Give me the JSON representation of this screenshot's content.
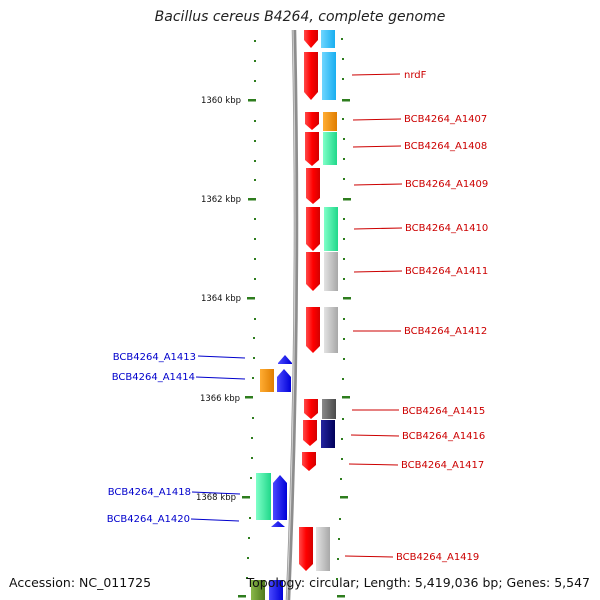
{
  "title": "Bacillus cereus B4264, complete genome",
  "footer": {
    "accession": "Accession: NC_011725",
    "summary": "Topology: circular; Length: 5,419,036 bp; Genes: 5,547"
  },
  "colors": {
    "forward_label": "#cc0000",
    "reverse_label": "#0000cc",
    "tick": "#2e7d1e",
    "backbone": "#888888"
  },
  "scale_labels": [
    "1360 kbp",
    "1362 kbp",
    "1364 kbp",
    "1366 kbp",
    "1368 kbp"
  ],
  "genes": [
    {
      "label": "nrdF",
      "strand": "forward"
    },
    {
      "label": "BCB4264_A1407",
      "strand": "forward"
    },
    {
      "label": "BCB4264_A1408",
      "strand": "forward"
    },
    {
      "label": "BCB4264_A1409",
      "strand": "forward"
    },
    {
      "label": "BCB4264_A1410",
      "strand": "forward"
    },
    {
      "label": "BCB4264_A1411",
      "strand": "forward"
    },
    {
      "label": "BCB4264_A1412",
      "strand": "forward"
    },
    {
      "label": "BCB4264_A1415",
      "strand": "forward"
    },
    {
      "label": "BCB4264_A1416",
      "strand": "forward"
    },
    {
      "label": "BCB4264_A1417",
      "strand": "forward"
    },
    {
      "label": "BCB4264_A1419",
      "strand": "forward"
    },
    {
      "label": "BCB4264_A1413",
      "strand": "reverse"
    },
    {
      "label": "BCB4264_A1414",
      "strand": "reverse"
    },
    {
      "label": "BCB4264_A1418",
      "strand": "reverse"
    },
    {
      "label": "BCB4264_A1420",
      "strand": "reverse"
    }
  ]
}
